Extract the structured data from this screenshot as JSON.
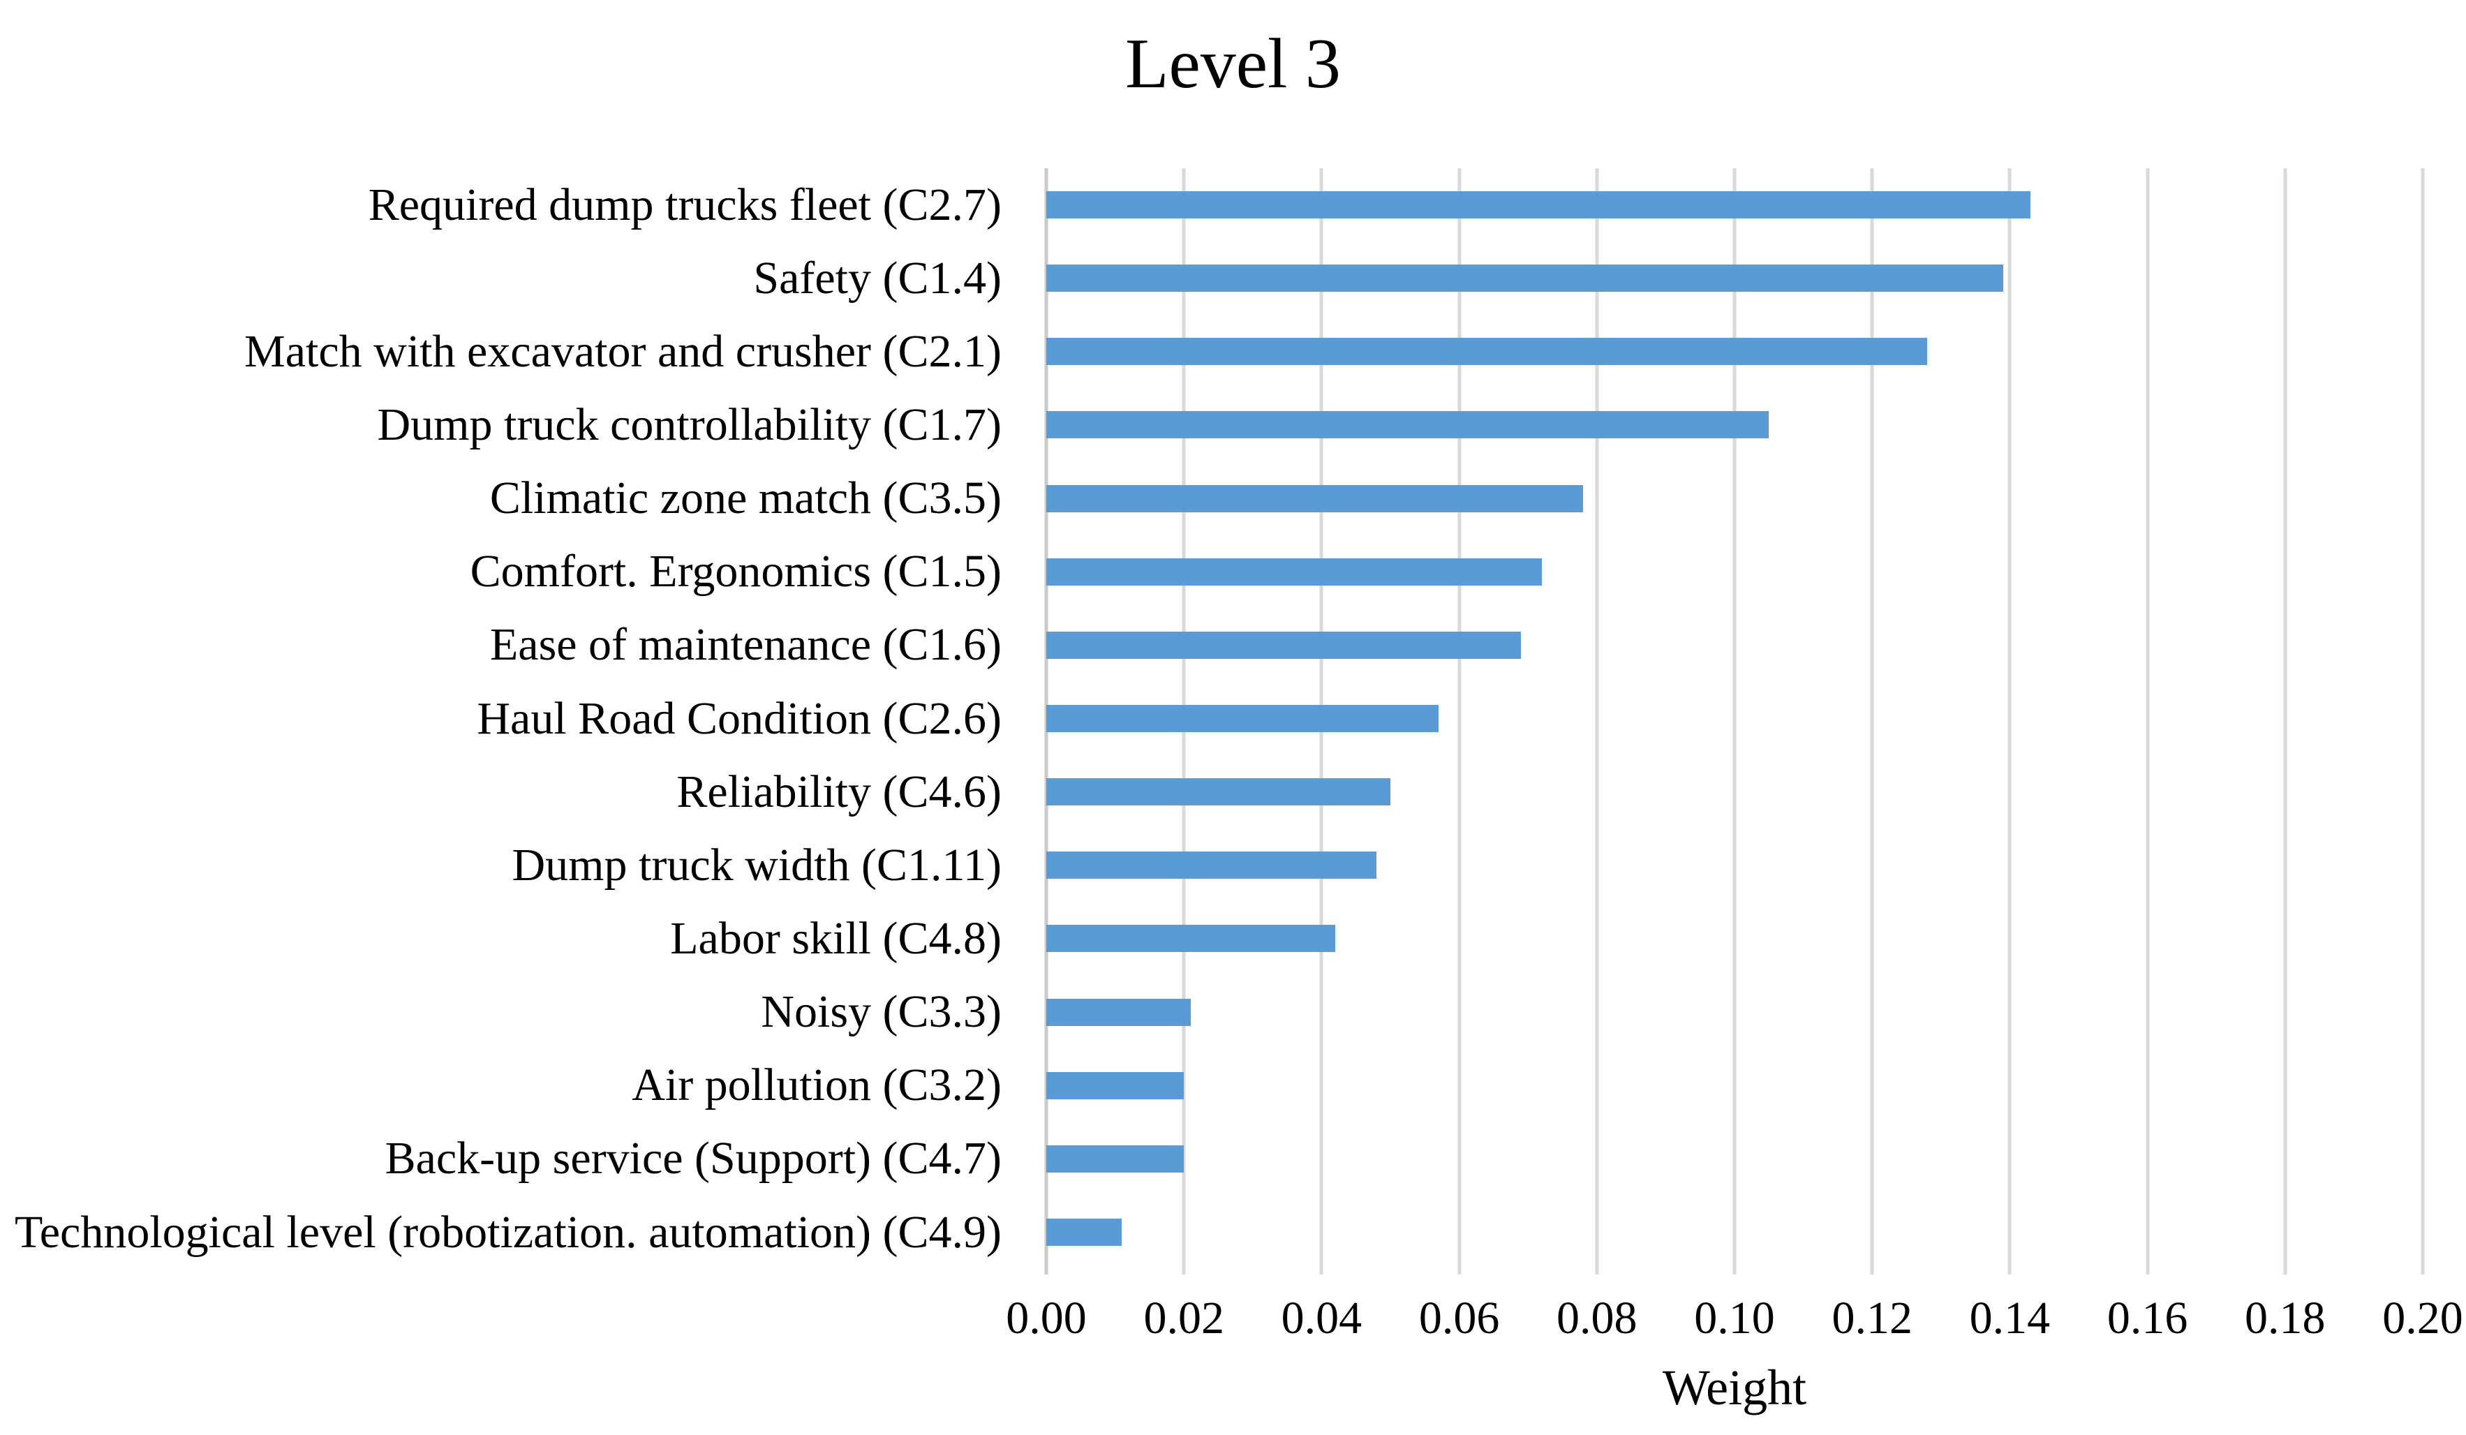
{
  "chart_data": {
    "type": "bar",
    "orientation": "horizontal",
    "title": "Level 3",
    "xlabel": "Weight",
    "ylabel": "",
    "xlim": [
      0,
      0.2
    ],
    "x_tick_step": 0.02,
    "x_ticks": [
      "0.00",
      "0.02",
      "0.04",
      "0.06",
      "0.08",
      "0.10",
      "0.12",
      "0.14",
      "0.16",
      "0.18",
      "0.20"
    ],
    "grid": "vertical-gridlines-on",
    "legend": "none",
    "bar_color": "#5b9bd5",
    "gridline_color": "#d9d9d9",
    "axis_line_color": "#c9c9c9",
    "categories": [
      "Required dump trucks fleet (C2.7)",
      "Safety (C1.4)",
      "Match with excavator and crusher (C2.1)",
      "Dump truck controllability (C1.7)",
      "Climatic zone match (C3.5)",
      "Comfort. Ergonomics (C1.5)",
      "Ease of maintenance (C1.6)",
      "Haul Road Condition (C2.6)",
      "Reliability (C4.6)",
      "Dump truck width (C1.11)",
      "Labor skill (C4.8)",
      "Noisy (C3.3)",
      "Air pollution (C3.2)",
      "Back-up service (Support) (C4.7)",
      "Technological level (robotization. automation) (C4.9)"
    ],
    "values": [
      0.143,
      0.139,
      0.128,
      0.105,
      0.078,
      0.072,
      0.069,
      0.057,
      0.05,
      0.048,
      0.042,
      0.021,
      0.02,
      0.02,
      0.011
    ]
  }
}
